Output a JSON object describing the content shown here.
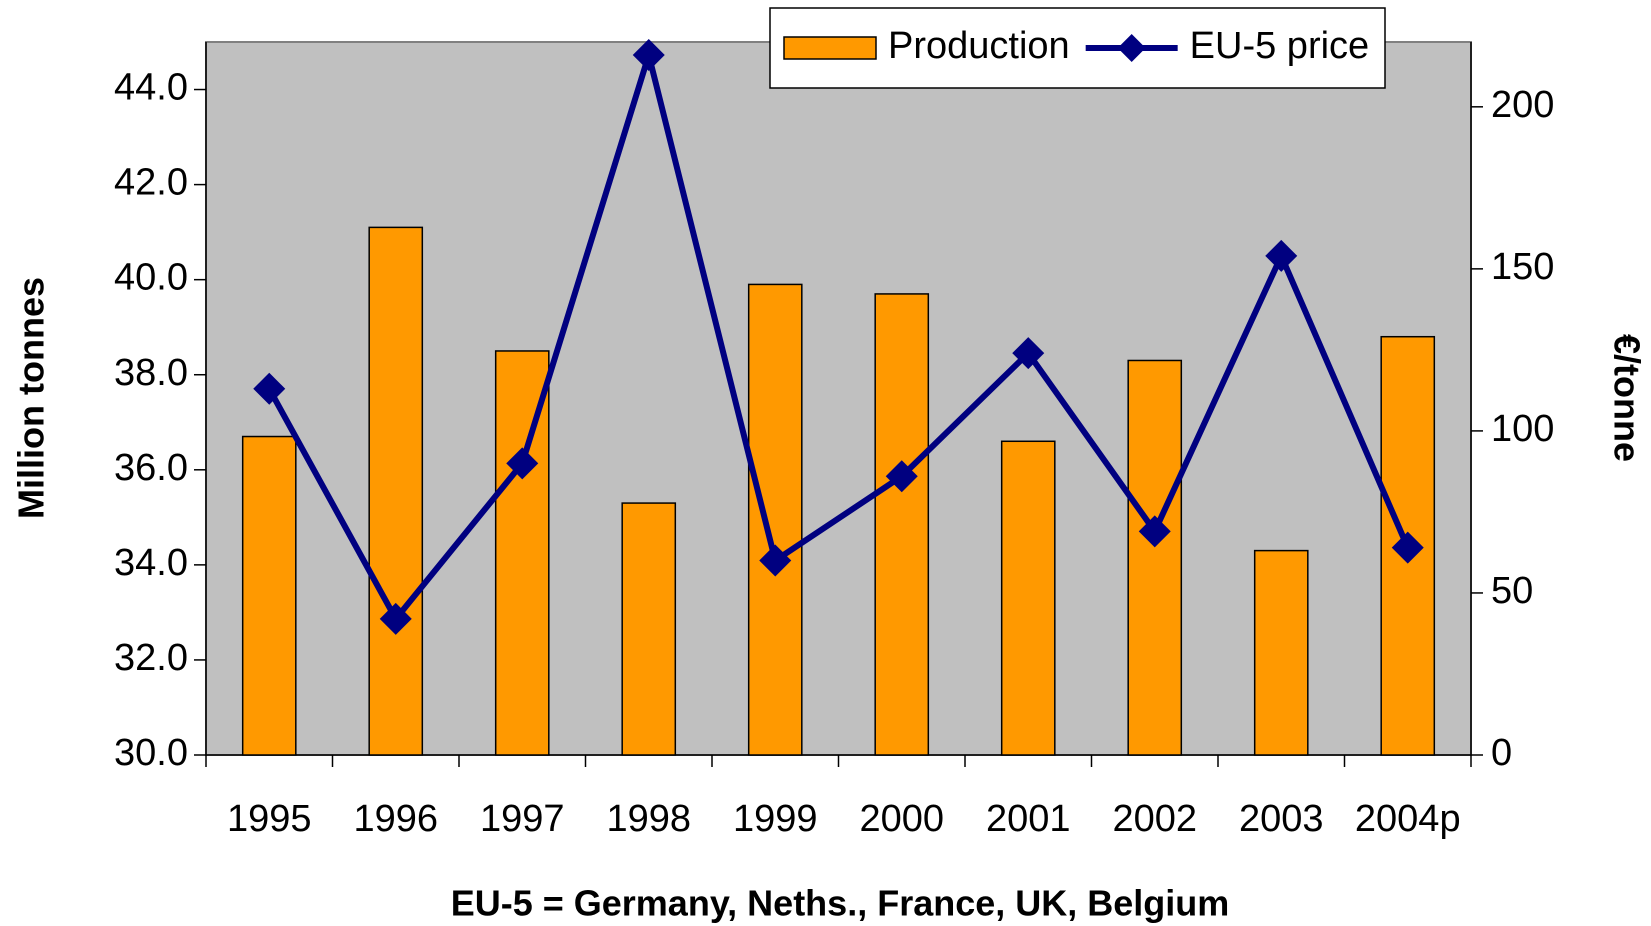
{
  "chart_data": {
    "type": "bar-line",
    "x_label": "EU-5 = Germany, Neths., France, UK, Belgium",
    "y_label": "Million tonnes",
    "y2_label": "€/tonne",
    "categories": [
      "1995",
      "1996",
      "1997",
      "1998",
      "1999",
      "2000",
      "2001",
      "2002",
      "2003",
      "2004p"
    ],
    "series": [
      {
        "name": "Production",
        "type": "bar",
        "color": "#ff9900",
        "values": [
          36.7,
          41.1,
          38.5,
          35.3,
          39.9,
          39.7,
          36.6,
          38.3,
          34.3,
          38.8
        ]
      },
      {
        "name": "EU-5 price",
        "type": "line",
        "color": "#000080",
        "axis": "y2",
        "values": [
          113,
          42,
          90,
          216,
          60,
          86,
          124,
          69,
          154,
          64
        ]
      }
    ],
    "ylim": [
      30,
      45
    ],
    "yticks": [
      {
        "value": 30,
        "label": "30.0"
      },
      {
        "value": 32,
        "label": "32.0"
      },
      {
        "value": 34,
        "label": "34.0"
      },
      {
        "value": 36,
        "label": "36.0"
      },
      {
        "value": 38,
        "label": "38.0"
      },
      {
        "value": 40,
        "label": "40.0"
      },
      {
        "value": 42,
        "label": "42.0"
      },
      {
        "value": 44,
        "label": "44.0"
      }
    ],
    "y2lim": [
      0,
      220
    ],
    "y2ticks": [
      0,
      50,
      100,
      150,
      200
    ],
    "plot_background": "#c0c0c0",
    "legend": "top-right"
  }
}
